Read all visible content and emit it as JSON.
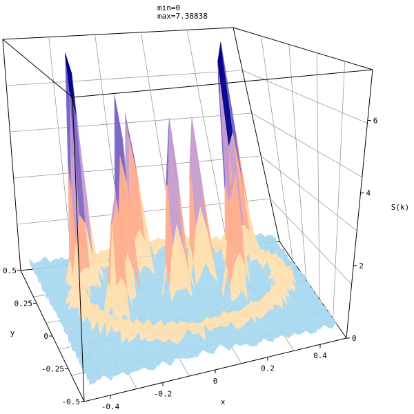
{
  "header": {
    "min_label": "min=0",
    "max_label": "max=7.38838"
  },
  "chart_data": {
    "type": "surface",
    "xlabel": "x",
    "ylabel": "y",
    "zlabel": "S(k)",
    "xlim": [
      -0.5,
      0.5
    ],
    "ylim": [
      -0.5,
      0.5
    ],
    "zlim": [
      0,
      7.4
    ],
    "x_ticks": [
      "-0.4",
      "-0.2",
      "0",
      "0.2",
      "0.4"
    ],
    "y_ticks": [
      "0.5",
      "0.25",
      "0",
      "-0.25",
      "-0.5"
    ],
    "z_ticks": [
      "0",
      "2",
      "4",
      "6"
    ],
    "min": 0,
    "max": 7.38838,
    "peaks": [
      {
        "x": -0.32,
        "y": 0.22,
        "z": 7.2
      },
      {
        "x": 0.3,
        "y": 0.25,
        "z": 7.39
      },
      {
        "x": -0.18,
        "y": 0.1,
        "z": 6.1
      },
      {
        "x": 0.0,
        "y": 0.05,
        "z": 5.6
      },
      {
        "x": 0.12,
        "y": 0.15,
        "z": 5.2
      },
      {
        "x": -0.08,
        "y": 0.3,
        "z": 4.9
      },
      {
        "x": 0.2,
        "y": -0.05,
        "z": 4.2
      },
      {
        "x": -0.25,
        "y": -0.05,
        "z": 3.8
      }
    ],
    "grid": true,
    "colormap": [
      "#00008b",
      "#7b68c8",
      "#c8a0d0",
      "#ffb090",
      "#ffe0b0",
      "#a8d8f0"
    ]
  }
}
